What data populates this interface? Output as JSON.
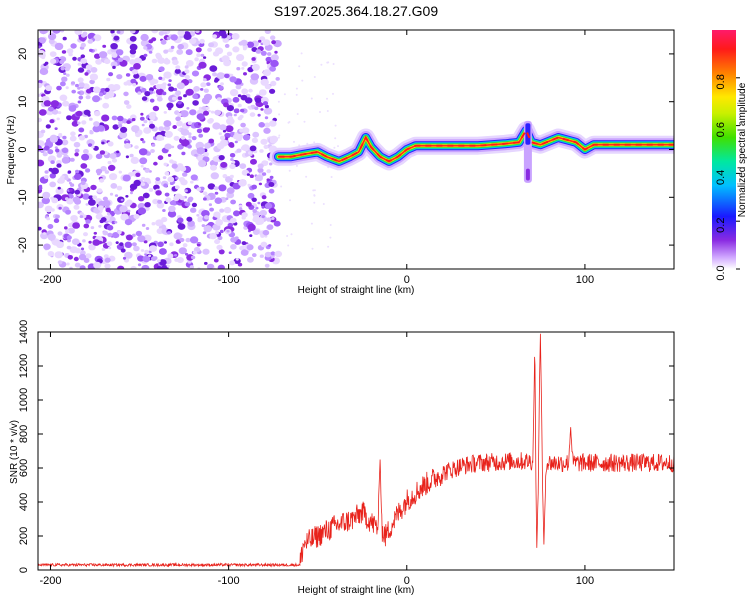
{
  "title": "S197.2025.364.18.27.G09",
  "chart_data": [
    {
      "type": "heatmap",
      "name": "spectrogram",
      "xlabel": "Height of straight line (km)",
      "ylabel": "Frequency (Hz)",
      "xlim": [
        -207,
        150
      ],
      "ylim": [
        -25,
        25
      ],
      "x_ticks": [
        -200,
        -100,
        0,
        100
      ],
      "y_ticks": [
        -20,
        -10,
        0,
        10,
        20
      ],
      "noise_region_x": [
        -207,
        -72
      ],
      "signal_track": [
        {
          "x": -72,
          "y": -1.5
        },
        {
          "x": -65,
          "y": -1.5
        },
        {
          "x": -58,
          "y": -1.0
        },
        {
          "x": -50,
          "y": -0.5
        },
        {
          "x": -45,
          "y": -1.5
        },
        {
          "x": -38,
          "y": -2.5
        },
        {
          "x": -32,
          "y": -1.5
        },
        {
          "x": -27,
          "y": -0.5
        },
        {
          "x": -23,
          "y": 2.5
        },
        {
          "x": -20,
          "y": 0.5
        },
        {
          "x": -15,
          "y": -1.5
        },
        {
          "x": -10,
          "y": -2.5
        },
        {
          "x": -5,
          "y": -1.5
        },
        {
          "x": 0,
          "y": 0.0
        },
        {
          "x": 5,
          "y": 0.8
        },
        {
          "x": 20,
          "y": 0.8
        },
        {
          "x": 40,
          "y": 0.8
        },
        {
          "x": 55,
          "y": 1.2
        },
        {
          "x": 63,
          "y": 1.5
        },
        {
          "x": 67,
          "y": 4.0
        },
        {
          "x": 70,
          "y": 1.5
        },
        {
          "x": 75,
          "y": 1.0
        },
        {
          "x": 85,
          "y": 2.5
        },
        {
          "x": 95,
          "y": 1.5
        },
        {
          "x": 100,
          "y": 0.0
        },
        {
          "x": 105,
          "y": 1.0
        },
        {
          "x": 150,
          "y": 1.0
        }
      ],
      "colorbar": {
        "label": "Normalized spectral amplitude",
        "range": [
          0.0,
          1.0
        ],
        "ticks": [
          "0.0",
          "0.2",
          "0.4",
          "0.6",
          "0.8"
        ]
      }
    },
    {
      "type": "line",
      "name": "snr",
      "xlabel": "Height of straight line (km)",
      "ylabel": "SNR (10 * v/v)",
      "xlim": [
        -207,
        150
      ],
      "ylim": [
        0,
        1400
      ],
      "x_ticks": [
        -200,
        -100,
        0,
        100
      ],
      "y_ticks": [
        0,
        200,
        400,
        600,
        800,
        1000,
        1200,
        1400
      ],
      "color": "#e8221b",
      "baseline": [
        {
          "x": -207,
          "y": 30
        },
        {
          "x": -60,
          "y": 30
        }
      ],
      "trend": [
        {
          "x": -60,
          "y": 30
        },
        {
          "x": -58,
          "y": 150
        },
        {
          "x": -50,
          "y": 200
        },
        {
          "x": -40,
          "y": 260
        },
        {
          "x": -30,
          "y": 300
        },
        {
          "x": -25,
          "y": 340
        },
        {
          "x": -20,
          "y": 280
        },
        {
          "x": -15,
          "y": 240
        },
        {
          "x": -12,
          "y": 200
        },
        {
          "x": -5,
          "y": 330
        },
        {
          "x": 0,
          "y": 410
        },
        {
          "x": 10,
          "y": 500
        },
        {
          "x": 20,
          "y": 570
        },
        {
          "x": 30,
          "y": 610
        },
        {
          "x": 40,
          "y": 630
        },
        {
          "x": 60,
          "y": 640
        },
        {
          "x": 70,
          "y": 640
        },
        {
          "x": 80,
          "y": 630
        },
        {
          "x": 100,
          "y": 630
        },
        {
          "x": 150,
          "y": 630
        }
      ],
      "spikes": [
        {
          "x": -15,
          "y": 650
        },
        {
          "x": 72,
          "y": 1420
        },
        {
          "x": 73,
          "y": 130
        },
        {
          "x": 75,
          "y": 1390
        },
        {
          "x": 77,
          "y": 150
        },
        {
          "x": 92,
          "y": 840
        }
      ]
    }
  ]
}
